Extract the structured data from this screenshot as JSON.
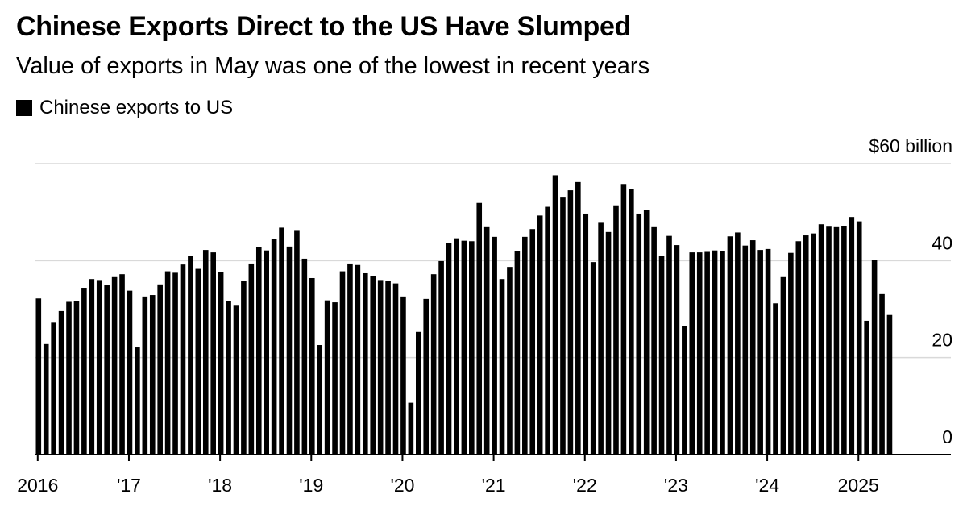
{
  "chart_data": {
    "type": "bar",
    "title": "Chinese Exports Direct to the US Have Slumped",
    "subtitle": "Value of exports in May was one of the lowest in recent years",
    "legend": [
      "Chinese exports to US"
    ],
    "unit_label": "$60 billion",
    "ylim": [
      0,
      60
    ],
    "y_ticks": [
      {
        "value": 0,
        "label": "0"
      },
      {
        "value": 20,
        "label": "20"
      },
      {
        "value": 40,
        "label": "40"
      },
      {
        "value": 60,
        "label": "$60 billion"
      }
    ],
    "x_ticks": [
      {
        "index": 0,
        "label": "2016"
      },
      {
        "index": 12,
        "label": "'17"
      },
      {
        "index": 24,
        "label": "'18"
      },
      {
        "index": 36,
        "label": "'19"
      },
      {
        "index": 48,
        "label": "'20"
      },
      {
        "index": 60,
        "label": "'21"
      },
      {
        "index": 72,
        "label": "'22"
      },
      {
        "index": 84,
        "label": "'23"
      },
      {
        "index": 96,
        "label": "'24"
      },
      {
        "index": 108,
        "label": "2025"
      }
    ],
    "start": "2016-01",
    "series": [
      {
        "name": "Chinese exports to US",
        "color": "#000000",
        "values": [
          32.2,
          22.8,
          27.2,
          29.6,
          31.5,
          31.6,
          34.4,
          36.2,
          36.0,
          34.9,
          36.6,
          37.2,
          33.8,
          22.1,
          32.6,
          32.9,
          35.1,
          37.8,
          37.5,
          39.2,
          40.9,
          38.3,
          42.2,
          41.7,
          37.7,
          31.7,
          30.7,
          35.8,
          39.4,
          42.8,
          42.1,
          44.5,
          46.8,
          42.9,
          46.3,
          40.4,
          36.4,
          22.6,
          31.8,
          31.4,
          37.8,
          39.4,
          39.1,
          37.4,
          36.8,
          36.0,
          35.8,
          35.3,
          32.6,
          10.7,
          25.3,
          32.1,
          37.2,
          39.9,
          43.7,
          44.6,
          44.1,
          44.0,
          51.9,
          46.9,
          44.9,
          36.2,
          38.7,
          41.9,
          44.9,
          46.5,
          49.3,
          51.1,
          57.6,
          53.0,
          54.5,
          56.2,
          49.7,
          39.7,
          47.8,
          45.9,
          51.4,
          55.8,
          54.8,
          49.7,
          50.5,
          46.9,
          40.9,
          45.1,
          43.2,
          26.5,
          41.7,
          41.7,
          41.8,
          42.1,
          42.0,
          45.0,
          45.8,
          43.1,
          44.2,
          42.2,
          42.4,
          31.2,
          36.6,
          41.6,
          44.0,
          45.2,
          45.6,
          47.5,
          47.0,
          46.9,
          47.2,
          49.0,
          48.1,
          27.6,
          40.2,
          33.1,
          28.8
        ]
      }
    ]
  }
}
